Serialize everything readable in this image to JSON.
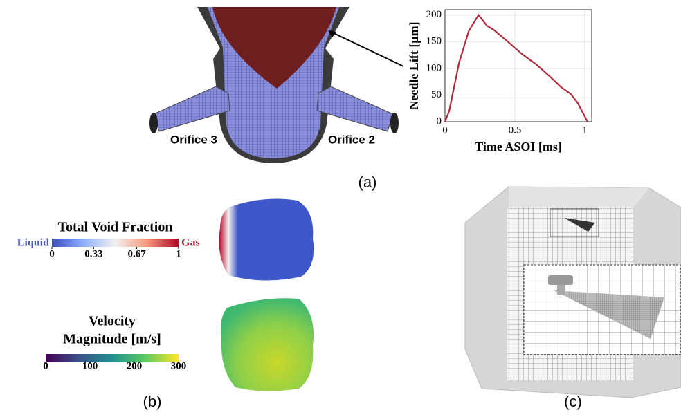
{
  "panels": {
    "a": {
      "label": "(a)",
      "orifice_left": "Orifice 3",
      "orifice_right": "Orifice 2"
    },
    "b": {
      "label": "(b)",
      "colorbars": [
        {
          "title": [
            "Total Void Fraction"
          ],
          "left_label": "Liquid",
          "right_label": "Gas",
          "range": [
            0,
            1
          ],
          "ticks": [
            0,
            0.33,
            0.67,
            1
          ],
          "colors": [
            "#3b4cc0",
            "#8db0fe",
            "#f2f0ef",
            "#f49a7b",
            "#b40426"
          ]
        },
        {
          "title": [
            "Velocity",
            "Magnitude [m/s]"
          ],
          "range": [
            0,
            300
          ],
          "ticks": [
            0,
            100,
            200,
            300
          ],
          "colors": [
            "#440154",
            "#3b528b",
            "#21908d",
            "#5dc962",
            "#fde725"
          ]
        }
      ]
    },
    "c": {
      "label": "(c)"
    }
  },
  "chart_data": {
    "type": "line",
    "xlabel": "Time ASOI [ms]",
    "ylabel": "Needle Lift [μm]",
    "x": [
      0,
      0.03,
      0.1,
      0.17,
      0.24,
      0.3,
      0.35,
      0.45,
      0.55,
      0.65,
      0.75,
      0.83,
      0.9,
      0.95,
      1.02
    ],
    "values": [
      0,
      20,
      110,
      170,
      200,
      180,
      172,
      150,
      127,
      108,
      85,
      65,
      52,
      35,
      0
    ],
    "color": "#b22a3a",
    "xlim": [
      0,
      1.05
    ],
    "ylim": [
      0,
      210
    ],
    "xticks": [
      0,
      0.5,
      1
    ],
    "yticks": [
      0,
      50,
      100,
      150,
      200
    ],
    "grid": true
  }
}
